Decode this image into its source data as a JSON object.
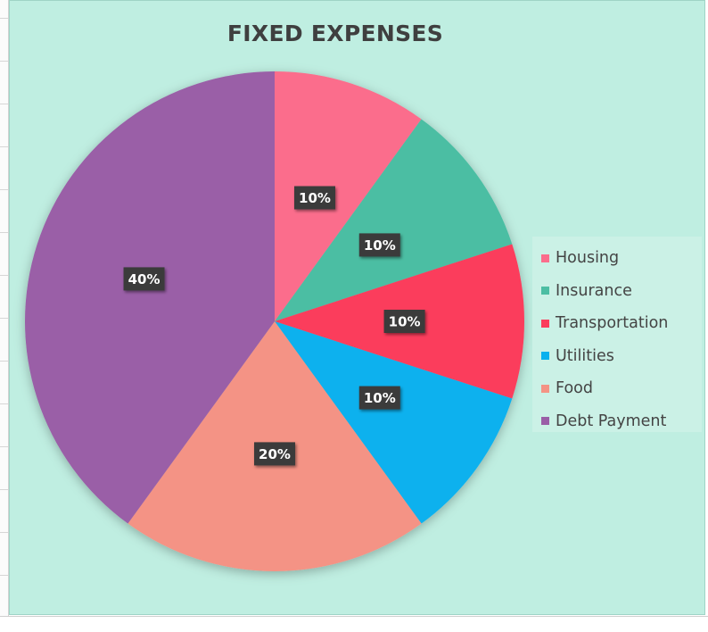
{
  "chart_data": {
    "type": "pie",
    "title": "FIXED EXPENSES",
    "categories": [
      "Housing",
      "Insurance",
      "Transportation",
      "Utilities",
      "Food",
      "Debt Payment"
    ],
    "values": [
      10,
      10,
      10,
      10,
      20,
      40
    ],
    "data_labels": [
      "10%",
      "10%",
      "10%",
      "10%",
      "20%",
      "40%"
    ],
    "colors": [
      "#fb6d8c",
      "#4cbea3",
      "#fb3c5c",
      "#0ab1ee",
      "#f49385",
      "#9a5ea7"
    ],
    "legend_position": "right"
  }
}
